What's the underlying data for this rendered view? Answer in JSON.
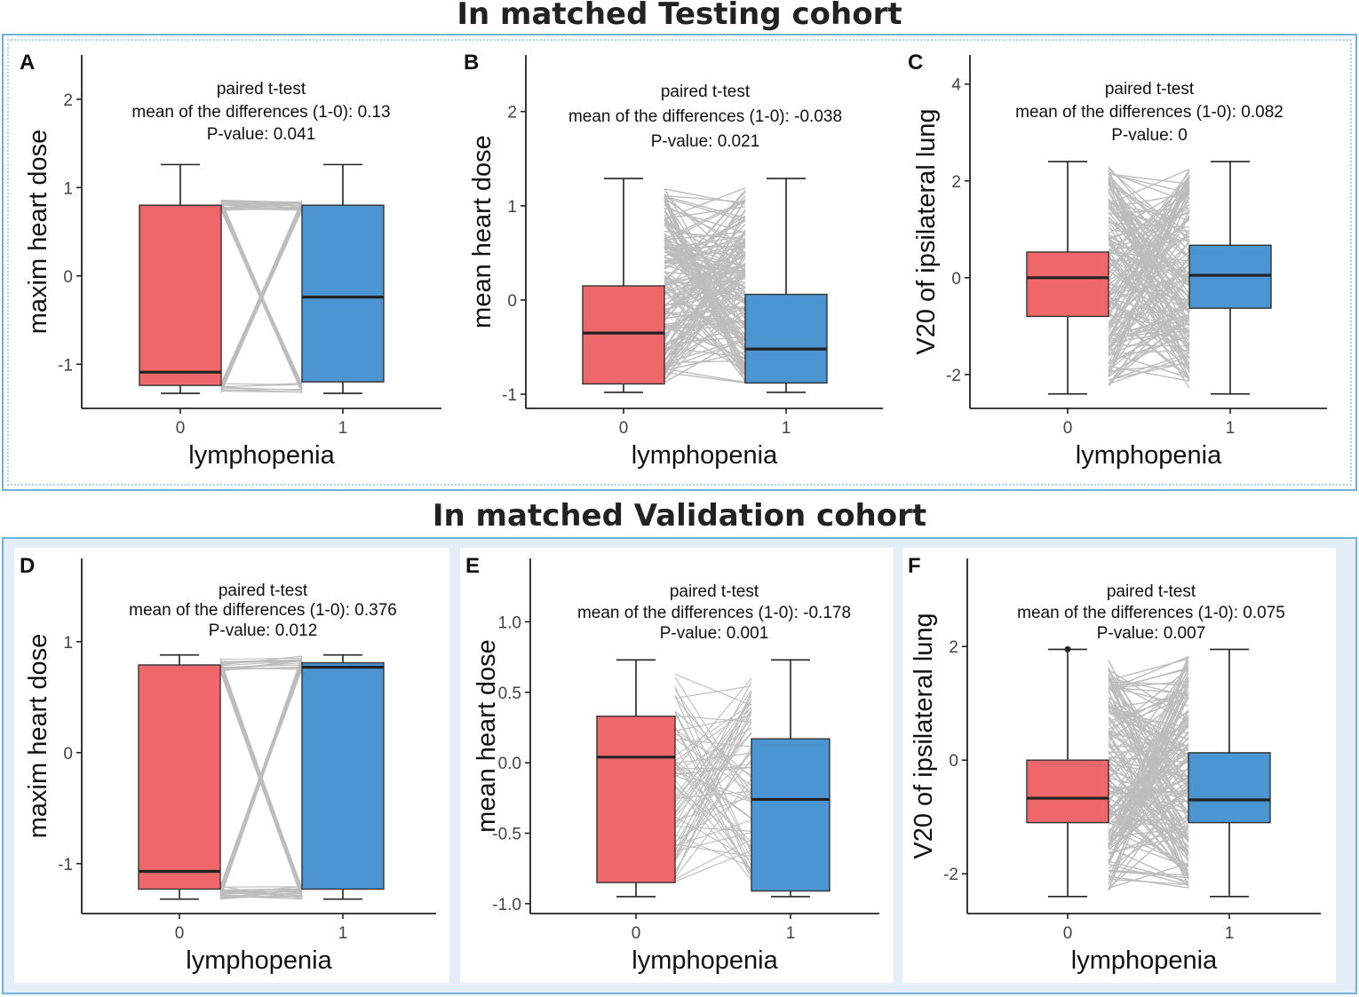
{
  "titles": {
    "top": "In matched Testing cohort",
    "bottom": "In matched Validation cohort"
  },
  "colors": {
    "group0": "#f0676b",
    "group1": "#4a95d2",
    "lines": "#bdbdbd",
    "frame": "#6fb2de",
    "frame_fill_bottom": "#e3eef8"
  },
  "chart_data": [
    {
      "panel": "A",
      "type": "box",
      "cohort": "Testing",
      "xlabel": "lymphopenia",
      "ylabel": "maxim heart dose",
      "categories": [
        "0",
        "1"
      ],
      "yticks": [
        -1,
        0,
        1,
        2
      ],
      "ylim": [
        -1.5,
        2.5
      ],
      "boxes": [
        {
          "group": "0",
          "whisker_low": -1.33,
          "q1": -1.24,
          "median": -1.09,
          "q3": 0.8,
          "whisker_high": 1.26
        },
        {
          "group": "1",
          "whisker_low": -1.33,
          "q1": -1.2,
          "median": -0.24,
          "q3": 0.8,
          "whisker_high": 1.26
        }
      ],
      "annotation": [
        "paired t-test",
        "mean of the differences (1-0): 0.13",
        "P-value: 0.041"
      ]
    },
    {
      "panel": "B",
      "type": "box",
      "cohort": "Testing",
      "xlabel": "lymphopenia",
      "ylabel": "mean heart dose",
      "categories": [
        "0",
        "1"
      ],
      "yticks": [
        -1,
        0,
        1,
        2
      ],
      "ylim": [
        -1.15,
        2.6
      ],
      "boxes": [
        {
          "group": "0",
          "whisker_low": -0.98,
          "q1": -0.89,
          "median": -0.35,
          "q3": 0.15,
          "whisker_high": 1.29
        },
        {
          "group": "1",
          "whisker_low": -0.98,
          "q1": -0.88,
          "median": -0.52,
          "q3": 0.06,
          "whisker_high": 1.29
        }
      ],
      "annotation": [
        "paired t-test",
        "mean of the differences (1-0): -0.038",
        "P-value: 0.021"
      ]
    },
    {
      "panel": "C",
      "type": "box",
      "cohort": "Testing",
      "xlabel": "lymphopenia",
      "ylabel": "V20 of ipsilateral lung",
      "categories": [
        "0",
        "1"
      ],
      "yticks": [
        -2,
        0,
        2,
        4
      ],
      "ylim": [
        -2.7,
        4.6
      ],
      "boxes": [
        {
          "group": "0",
          "whisker_low": -2.4,
          "q1": -0.8,
          "median": 0.0,
          "q3": 0.53,
          "whisker_high": 2.4
        },
        {
          "group": "1",
          "whisker_low": -2.4,
          "q1": -0.63,
          "median": 0.05,
          "q3": 0.67,
          "whisker_high": 2.4
        }
      ],
      "annotation": [
        "paired t-test",
        "mean of the differences (1-0): 0.082",
        "P-value: 0"
      ]
    },
    {
      "panel": "D",
      "type": "box",
      "cohort": "Validation",
      "xlabel": "lymphopenia",
      "ylabel": "maxim heart dose",
      "categories": [
        "0",
        "1"
      ],
      "yticks": [
        -1,
        0,
        1
      ],
      "ylim": [
        -1.45,
        1.75
      ],
      "boxes": [
        {
          "group": "0",
          "whisker_low": -1.32,
          "q1": -1.23,
          "median": -1.07,
          "q3": 0.79,
          "whisker_high": 0.88
        },
        {
          "group": "1",
          "whisker_low": -1.32,
          "q1": -1.23,
          "median": 0.77,
          "q3": 0.81,
          "whisker_high": 0.88
        }
      ],
      "annotation": [
        "paired t-test",
        "mean of the differences (1-0): 0.376",
        "P-value: 0.012"
      ]
    },
    {
      "panel": "E",
      "type": "box",
      "cohort": "Validation",
      "xlabel": "lymphopenia",
      "ylabel": "mean heart dose",
      "categories": [
        "0",
        "1"
      ],
      "yticks": [
        -1.0,
        -0.5,
        0.0,
        0.5,
        1.0
      ],
      "ytick_labels": [
        "-1.0",
        "-0.5",
        "0.0",
        "0.5",
        "1.0"
      ],
      "ylim": [
        -1.07,
        1.45
      ],
      "boxes": [
        {
          "group": "0",
          "whisker_low": -0.95,
          "q1": -0.85,
          "median": 0.04,
          "q3": 0.33,
          "whisker_high": 0.73
        },
        {
          "group": "1",
          "whisker_low": -0.95,
          "q1": -0.91,
          "median": -0.26,
          "q3": 0.17,
          "whisker_high": 0.73
        }
      ],
      "annotation": [
        "paired t-test",
        "mean of the differences (1-0): -0.178",
        "P-value: 0.001"
      ]
    },
    {
      "panel": "F",
      "type": "box",
      "cohort": "Validation",
      "xlabel": "lymphopenia",
      "ylabel": "V20 of ipsilateral lung",
      "categories": [
        "0",
        "1"
      ],
      "yticks": [
        -2,
        0,
        2
      ],
      "ylim": [
        -2.7,
        3.55
      ],
      "boxes": [
        {
          "group": "0",
          "whisker_low": -2.4,
          "q1": -1.1,
          "median": -0.67,
          "q3": 0.0,
          "whisker_high": 1.95,
          "outliers": [
            1.95
          ]
        },
        {
          "group": "1",
          "whisker_low": -2.4,
          "q1": -1.1,
          "median": -0.7,
          "q3": 0.13,
          "whisker_high": 1.95
        }
      ],
      "annotation": [
        "paired t-test",
        "mean of the differences (1-0): 0.075",
        "P-value: 0.007"
      ]
    }
  ]
}
